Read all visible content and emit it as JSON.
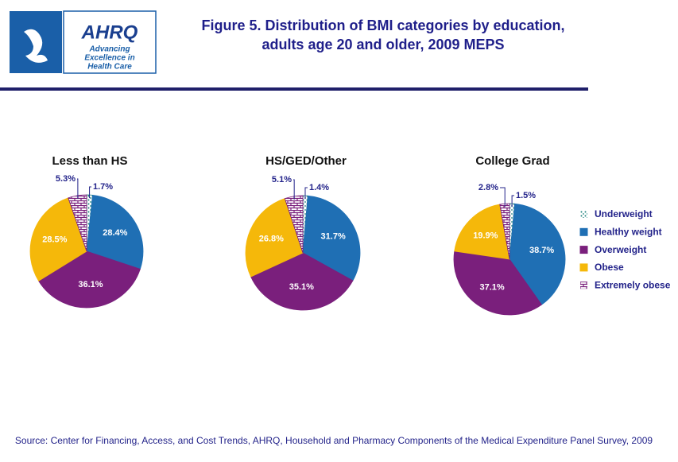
{
  "header": {
    "title_lines": [
      "Figure 5. Distribution of BMI categories by education,",
      "adults age 20 and older, 2009 MEPS"
    ],
    "logo": {
      "name": "AHRQ",
      "tagline": [
        "Advancing",
        "Excellence in",
        "Health Care"
      ]
    }
  },
  "chart_data": {
    "type": "pie",
    "categories": [
      "Underweight",
      "Healthy weight",
      "Overweight",
      "Obese",
      "Extremely obese"
    ],
    "colors": [
      "#17807a",
      "#1f6fb4",
      "#7a1f7c",
      "#f5b80a",
      "#7a1f7c"
    ],
    "series": [
      {
        "name": "Less than HS",
        "values": [
          1.7,
          28.4,
          36.1,
          28.5,
          5.3
        ],
        "value_labels": [
          "1.7%",
          "28.4%",
          "36.1%",
          "28.5%",
          "5.3%"
        ]
      },
      {
        "name": "HS/GED/Other",
        "values": [
          1.4,
          31.7,
          35.1,
          26.8,
          5.1
        ],
        "value_labels": [
          "1.4%",
          "31.7%",
          "35.1%",
          "26.8%",
          "5.1%"
        ]
      },
      {
        "name": "College Grad",
        "values": [
          1.5,
          38.7,
          37.1,
          19.9,
          2.8
        ],
        "value_labels": [
          "1.5%",
          "38.7%",
          "37.1%",
          "19.9%",
          "2.8%"
        ]
      }
    ],
    "legend": "right"
  },
  "source": "Source: Center for Financing, Access, and Cost Trends, AHRQ, Household and Pharmacy Components of the Medical Expenditure Panel Survey, 2009"
}
